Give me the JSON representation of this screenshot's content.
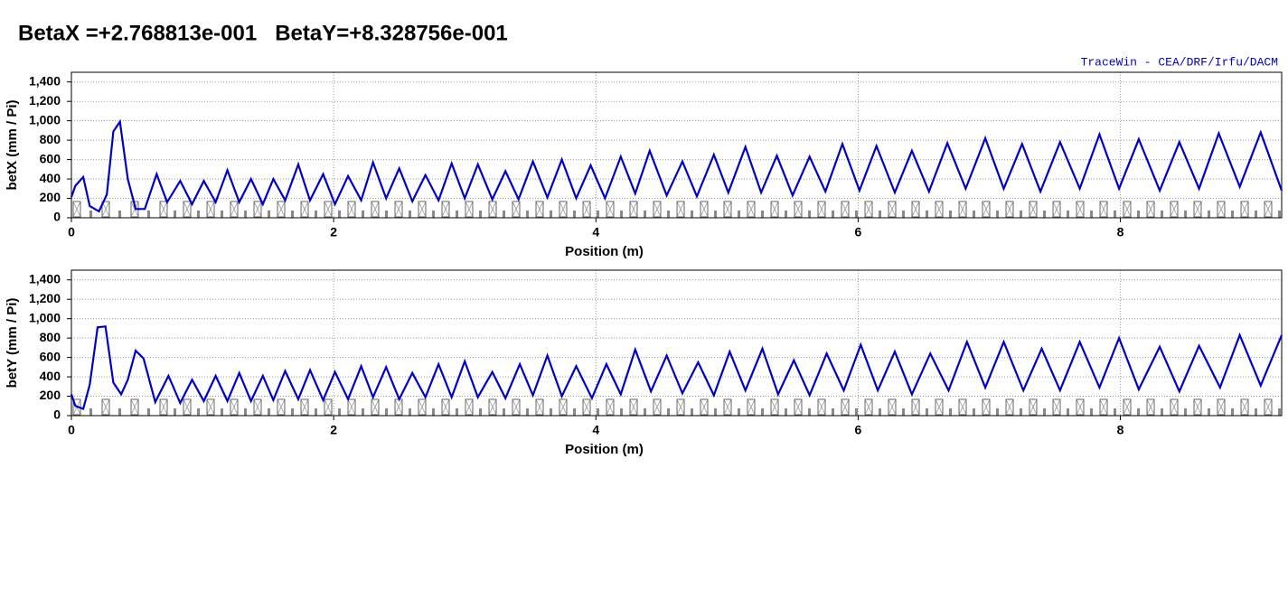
{
  "title": "BetaX =+2.768813e-001   BetaY=+8.328756e-001",
  "credit": "TraceWin - CEA/DRF/Irfu/DACM",
  "chart_data": [
    {
      "type": "line",
      "x_label": "Position (m)",
      "y_label": "betX (mm / Pi)",
      "xlim": [
        0,
        9.23
      ],
      "ylim": [
        0,
        1500
      ],
      "xticks": [
        0,
        2,
        4,
        6,
        8
      ],
      "yticks": [
        0,
        200,
        400,
        600,
        800,
        {
          "value": 1000,
          "label": "1,000"
        },
        {
          "value": 1200,
          "label": "1,200"
        },
        {
          "value": 1400,
          "label": "1,400"
        }
      ],
      "grid": true,
      "x": [
        0,
        0.03,
        0.09,
        0.14,
        0.21,
        0.27,
        0.32,
        0.37,
        0.43,
        0.49,
        0.56,
        0.65,
        0.73,
        0.83,
        0.92,
        1.01,
        1.1,
        1.19,
        1.28,
        1.37,
        1.46,
        1.54,
        1.63,
        1.73,
        1.82,
        1.92,
        2.01,
        2.11,
        2.21,
        2.3,
        2.4,
        2.5,
        2.6,
        2.7,
        2.8,
        2.9,
        3.0,
        3.1,
        3.21,
        3.31,
        3.41,
        3.52,
        3.63,
        3.74,
        3.85,
        3.96,
        4.07,
        4.19,
        4.3,
        4.41,
        4.54,
        4.66,
        4.77,
        4.9,
        5.01,
        5.14,
        5.26,
        5.38,
        5.5,
        5.63,
        5.75,
        5.88,
        6.01,
        6.14,
        6.28,
        6.41,
        6.54,
        6.68,
        6.82,
        6.97,
        7.11,
        7.25,
        7.39,
        7.54,
        7.69,
        7.84,
        7.99,
        8.14,
        8.3,
        8.45,
        8.6,
        8.75,
        8.91,
        9.07,
        9.23
      ],
      "series": [
        {
          "color": "#0000cc",
          "values": [
            213,
            330,
            420,
            120,
            65,
            240,
            890,
            990,
            400,
            90,
            90,
            450,
            160,
            380,
            140,
            380,
            160,
            490,
            160,
            400,
            140,
            400,
            180,
            550,
            180,
            450,
            140,
            430,
            180,
            570,
            200,
            510,
            170,
            440,
            180,
            560,
            200,
            550,
            190,
            480,
            190,
            580,
            210,
            600,
            200,
            540,
            200,
            630,
            250,
            690,
            230,
            580,
            220,
            650,
            260,
            730,
            260,
            640,
            230,
            630,
            270,
            760,
            280,
            740,
            260,
            690,
            270,
            770,
            300,
            820,
            300,
            760,
            270,
            780,
            300,
            860,
            300,
            810,
            280,
            780,
            300,
            870,
            320,
            880,
            280
          ]
        }
      ]
    },
    {
      "type": "line",
      "x_label": "Position (m)",
      "y_label": "betY (mm / Pi)",
      "xlim": [
        0,
        9.23
      ],
      "ylim": [
        0,
        1500
      ],
      "xticks": [
        0,
        2,
        4,
        6,
        8
      ],
      "yticks": [
        0,
        200,
        400,
        600,
        800,
        {
          "value": 1000,
          "label": "1,000"
        },
        {
          "value": 1200,
          "label": "1,200"
        },
        {
          "value": 1400,
          "label": "1,400"
        }
      ],
      "grid": true,
      "x": [
        0,
        0.03,
        0.09,
        0.14,
        0.2,
        0.26,
        0.32,
        0.38,
        0.43,
        0.49,
        0.55,
        0.64,
        0.74,
        0.83,
        0.92,
        1.01,
        1.1,
        1.19,
        1.28,
        1.37,
        1.46,
        1.54,
        1.63,
        1.73,
        1.82,
        1.92,
        2.01,
        2.11,
        2.21,
        2.3,
        2.4,
        2.5,
        2.6,
        2.7,
        2.8,
        2.9,
        3.0,
        3.1,
        3.21,
        3.31,
        3.42,
        3.52,
        3.63,
        3.74,
        3.85,
        3.97,
        4.08,
        4.19,
        4.3,
        4.42,
        4.54,
        4.66,
        4.78,
        4.9,
        5.02,
        5.14,
        5.27,
        5.39,
        5.51,
        5.63,
        5.76,
        5.89,
        6.02,
        6.15,
        6.28,
        6.41,
        6.55,
        6.69,
        6.83,
        6.97,
        7.11,
        7.26,
        7.4,
        7.54,
        7.69,
        7.84,
        7.99,
        8.14,
        8.3,
        8.45,
        8.6,
        8.76,
        8.91,
        9.07,
        9.23
      ],
      "series": [
        {
          "color": "#0000cc",
          "values": [
            220,
            100,
            70,
            320,
            910,
            920,
            340,
            220,
            370,
            670,
            590,
            140,
            410,
            130,
            370,
            150,
            410,
            150,
            440,
            150,
            410,
            160,
            460,
            170,
            470,
            160,
            450,
            170,
            510,
            190,
            500,
            170,
            440,
            190,
            530,
            190,
            560,
            190,
            450,
            180,
            530,
            210,
            620,
            200,
            510,
            180,
            530,
            220,
            680,
            250,
            620,
            230,
            550,
            210,
            660,
            260,
            690,
            220,
            570,
            210,
            640,
            260,
            730,
            260,
            660,
            220,
            640,
            260,
            760,
            290,
            760,
            260,
            690,
            260,
            760,
            290,
            800,
            270,
            710,
            250,
            720,
            290,
            830,
            310,
            830
          ]
        }
      ]
    }
  ]
}
